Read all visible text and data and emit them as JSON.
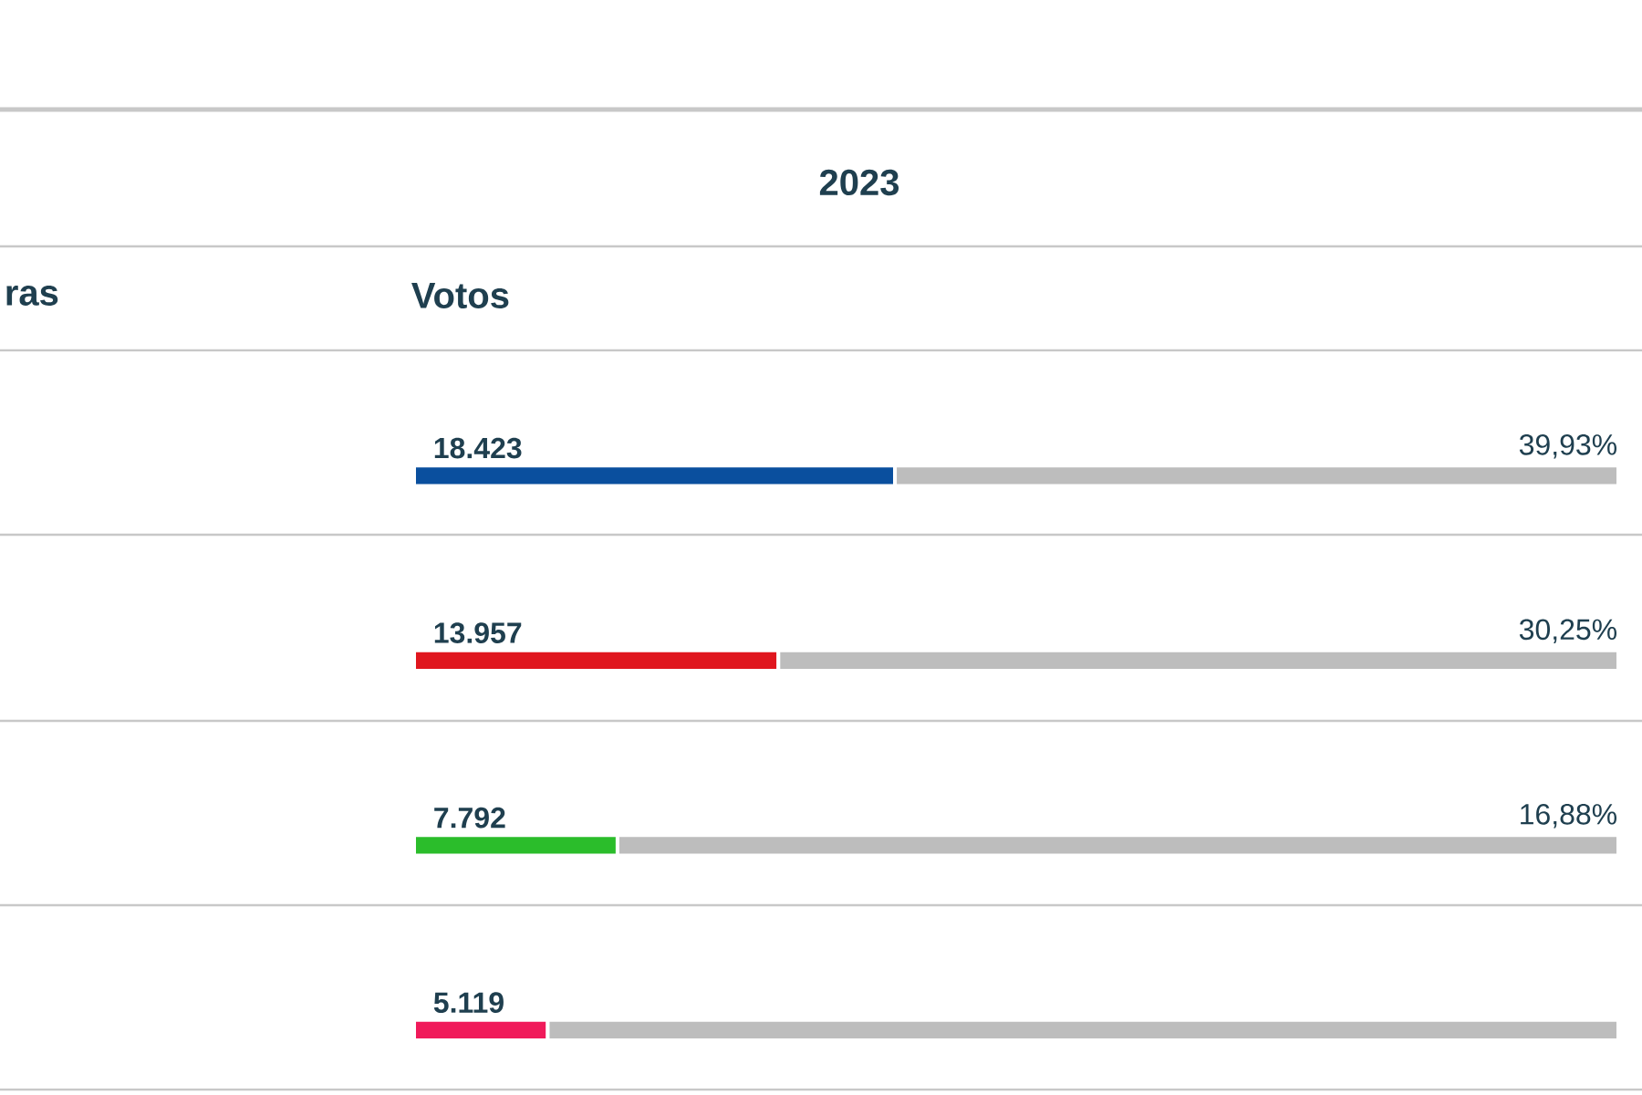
{
  "chart_data": {
    "type": "bar",
    "orientation": "horizontal",
    "stacked": true,
    "title": "2023",
    "xlabel": "Votos",
    "annotations": [
      "ras",
      "39,93%",
      "30,25%",
      "16,88%"
    ],
    "categories": [
      null,
      null,
      null,
      null
    ],
    "xlim": [
      0,
      46138
    ],
    "tick_labels": false,
    "series": [
      {
        "colors": [
          "#0a4f9e",
          "#e0161e",
          "#2bbd2b",
          "#f01a5a"
        ],
        "values": [
          18423,
          13957,
          7792,
          5119
        ],
        "value_labels": [
          "18.423",
          "13.957",
          "7.792",
          "5.119"
        ]
      },
      {
        "color": "#bdbdbd",
        "values": [
          27715,
          32181,
          38346,
          41019
        ]
      }
    ]
  }
}
